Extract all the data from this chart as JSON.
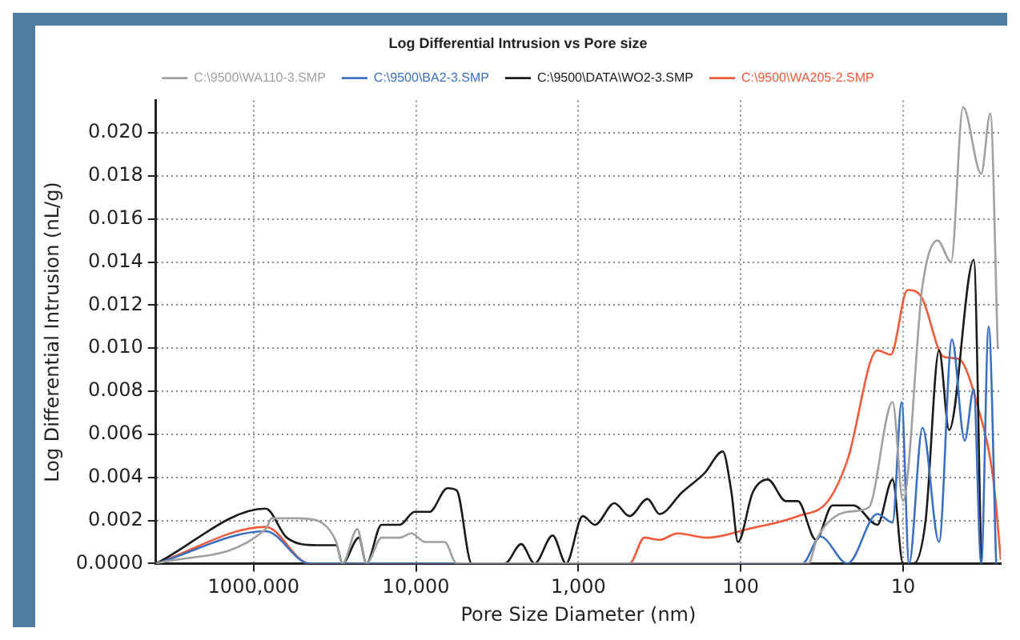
{
  "chart_data": {
    "type": "line",
    "title": "Log Differential Intrusion vs Pore size",
    "xlabel": "Pore Size Diameter (nm)",
    "ylabel": "Log Differential Intrusion (nL/g)",
    "log": "x",
    "xlim": [
      400000,
      2.5
    ],
    "xticks": [
      {
        "value": 100000,
        "label": "1000,000"
      },
      {
        "value": 10000,
        "label": "10,000"
      },
      {
        "value": 1000,
        "label": "1,000"
      },
      {
        "value": 100,
        "label": "100"
      },
      {
        "value": 10,
        "label": "10"
      }
    ],
    "ylim": [
      0,
      0.0215
    ],
    "yticks": [
      {
        "value": 0,
        "label": "0.0000"
      },
      {
        "value": 0.002,
        "label": "0.002"
      },
      {
        "value": 0.004,
        "label": "0.004"
      },
      {
        "value": 0.006,
        "label": "0.006"
      },
      {
        "value": 0.008,
        "label": "0.008"
      },
      {
        "value": 0.01,
        "label": "0.010"
      },
      {
        "value": 0.012,
        "label": "0.012"
      },
      {
        "value": 0.014,
        "label": "0.014"
      },
      {
        "value": 0.016,
        "label": "0.016"
      },
      {
        "value": 0.018,
        "label": "0.018"
      },
      {
        "value": 0.02,
        "label": "0.020"
      }
    ],
    "grid": true,
    "legend": "top",
    "marker": "none",
    "line_style": "solid",
    "series": [
      {
        "name": "C:\\9500\\WA110-3.SMP",
        "color": "#a0a0a0",
        "x": [
          398000,
          84300,
          77400,
          53800,
          40800,
          31000,
          28400,
          23000,
          20200,
          16300,
          12600,
          10700,
          8790,
          6660,
          5620,
          38.3,
          33.7,
          22.0,
          16.3,
          11.6,
          10,
          7.59,
          6.12,
          5.06,
          4.27,
          3.3,
          2.9,
          2.61
        ],
        "values": [
          0,
          0.0016,
          0.0021,
          0.0021,
          0.002,
          0.001,
          0,
          0.0016,
          0,
          0.0012,
          0.0012,
          0.0014,
          0.001,
          0.001,
          0,
          0,
          0.0012,
          0.0024,
          0.0026,
          0.0075,
          0.0029,
          0.0129,
          0.015,
          0.014,
          0.0212,
          0.0181,
          0.0209,
          0.01
        ]
      },
      {
        "name": "C:\\9500\\BA2-3.SMP",
        "color": "#3b6fc0",
        "x": [
          398000,
          84300,
          45400,
          41.7,
          32.3,
          22.0,
          14.4,
          11.6,
          10.2,
          9.18,
          7.59,
          6.0,
          5.0,
          4.17,
          3.67,
          3.3,
          2.97,
          2.67
        ],
        "values": [
          0,
          0.0015,
          0,
          0,
          0.00125,
          0,
          0.0023,
          0.0019,
          0.0075,
          0,
          0.0063,
          0.001,
          0.0104,
          0.0057,
          0.0081,
          0,
          0.011,
          0
        ]
      },
      {
        "name": "C:\\9500\\DATA\\WO2-3.SMP",
        "color": "#1a1a1a",
        "x": [
          398000,
          84300,
          62500,
          40800,
          31000,
          28400,
          22500,
          20200,
          16300,
          12600,
          10200,
          8260,
          6400,
          5620,
          4540,
          2840,
          2250,
          1860,
          1440,
          1190,
          940,
          790,
          600,
          484,
          375,
          316,
          230,
          167,
          129,
          114,
          104,
          84.3,
          68.1,
          52.7,
          44.5,
          34.4,
          27.2,
          20.2,
          14.4,
          11.6,
          10,
          8.6,
          7.26,
          6.0,
          5.2,
          3.67,
          3.3
        ],
        "values": [
          0,
          0.00255,
          0.0012,
          0.00085,
          0.00085,
          0,
          0.0012,
          0,
          0.0018,
          0.0018,
          0.0024,
          0.0024,
          0.0035,
          0.0034,
          0,
          0,
          0.0009,
          0,
          0.0013,
          0,
          0.0022,
          0.0018,
          0.0028,
          0.0022,
          0.003,
          0.0023,
          0.0033,
          0.0042,
          0.0052,
          0.0033,
          0.001,
          0.0033,
          0.0039,
          0.0029,
          0.0029,
          0.0011,
          0.0027,
          0.0027,
          0.0018,
          0.0039,
          0,
          0,
          0.002,
          0.0099,
          0.0062,
          0.0141,
          0
        ]
      },
      {
        "name": "C:\\9500\\WA205-2.SMP",
        "color": "#f05a3a",
        "x": [
          398000,
          84300,
          45400,
          484,
          392,
          316,
          245,
          160,
          90,
          44.5,
          29.0,
          22.0,
          14.4,
          11.9,
          9.38,
          7.74,
          5.62,
          4.54,
          3.44,
          2.78,
          2.5
        ],
        "values": [
          0,
          0.0017,
          0,
          0,
          0.0012,
          0.0011,
          0.0014,
          0.0012,
          0.0016,
          0.0022,
          0.0029,
          0.0048,
          0.0099,
          0.0097,
          0.0127,
          0.0124,
          0.0096,
          0.0095,
          0.0072,
          0.0039,
          0.0002
        ]
      }
    ]
  }
}
